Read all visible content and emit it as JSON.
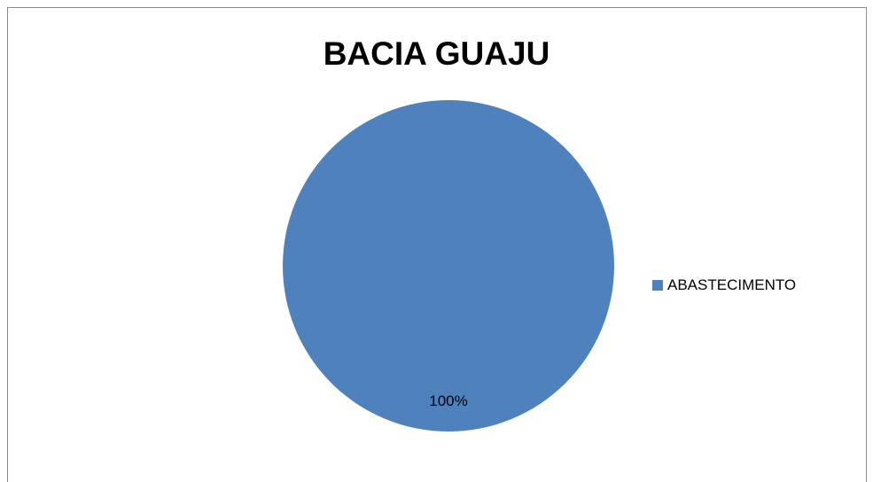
{
  "chart_data": {
    "type": "pie",
    "title": "BACIA GUAJU",
    "categories": [
      "ABASTECIMENTO"
    ],
    "values": [
      100
    ],
    "data_labels": [
      "100%"
    ],
    "legend_position": "right",
    "colors": [
      "#4f81bd"
    ]
  }
}
